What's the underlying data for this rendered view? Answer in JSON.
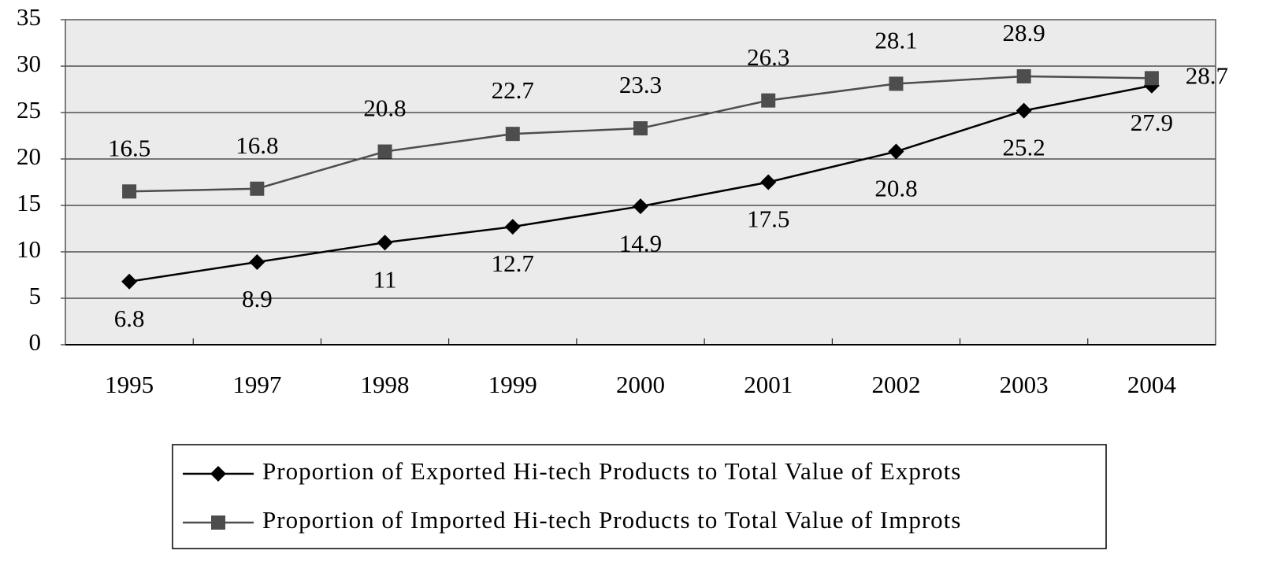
{
  "chart_data": {
    "type": "line",
    "categories": [
      "1995",
      "1997",
      "1998",
      "1999",
      "2000",
      "2001",
      "2002",
      "2003",
      "2004"
    ],
    "series": [
      {
        "name": "Proportion of Exported Hi-tech Products to Total Value of Exprots",
        "color": "#000000",
        "marker": "diamond",
        "values": [
          6.8,
          8.9,
          11,
          12.7,
          14.9,
          17.5,
          20.8,
          25.2,
          27.9
        ]
      },
      {
        "name": "Proportion of Imported Hi-tech Products to Total Value of Improts",
        "color": "#4d4d4d",
        "marker": "square",
        "values": [
          16.5,
          16.8,
          20.8,
          22.7,
          23.3,
          26.3,
          28.1,
          28.9,
          28.7
        ]
      }
    ],
    "ylim": [
      0,
      35
    ],
    "yticks": [
      0,
      5,
      10,
      15,
      20,
      25,
      30,
      35
    ],
    "grid": true,
    "legend": "bottom"
  }
}
